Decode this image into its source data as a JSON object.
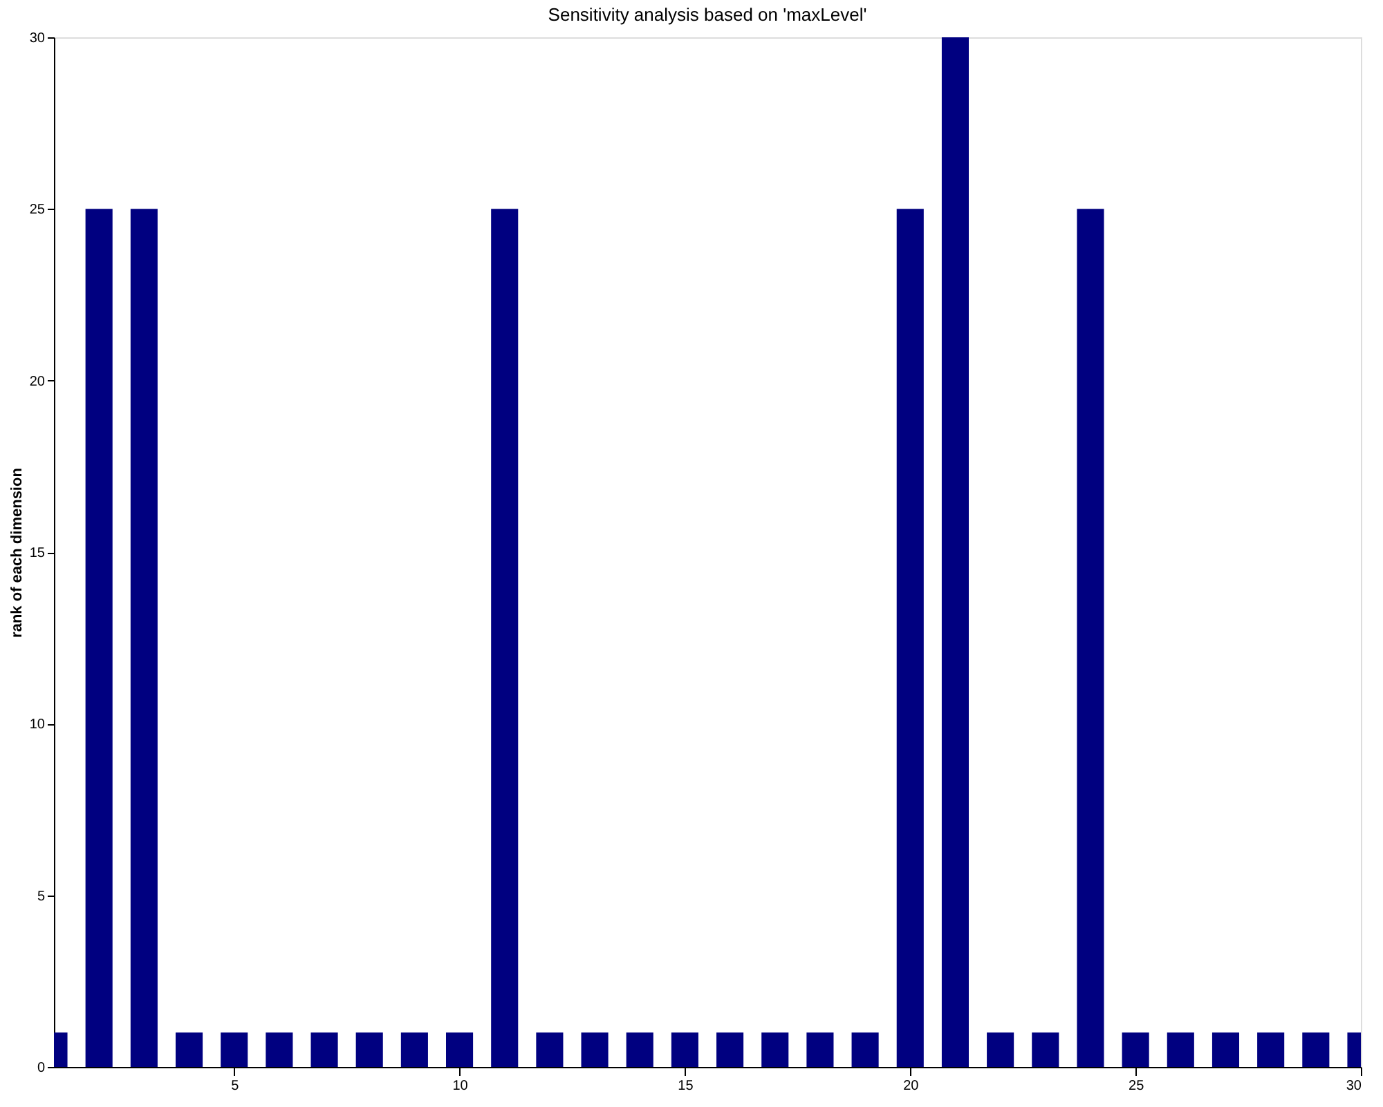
{
  "chart_data": {
    "type": "bar",
    "title": "Sensitivity analysis based on 'maxLevel'",
    "ylabel": "rank of each dimension",
    "x": [
      1,
      2,
      3,
      4,
      5,
      6,
      7,
      8,
      9,
      10,
      11,
      12,
      13,
      14,
      15,
      16,
      17,
      18,
      19,
      20,
      21,
      22,
      23,
      24,
      25,
      26,
      27,
      28,
      29,
      30
    ],
    "values": [
      1,
      25,
      25,
      1,
      1,
      1,
      1,
      1,
      1,
      1,
      25,
      1,
      1,
      1,
      1,
      1,
      1,
      1,
      1,
      25,
      30,
      1,
      1,
      25,
      1,
      1,
      1,
      1,
      1,
      1
    ],
    "color": "#000080",
    "xlim": [
      1,
      30
    ],
    "xticks": [
      5,
      10,
      15,
      20,
      25,
      30
    ],
    "ylim": [
      0,
      30
    ],
    "yticks": [
      0,
      5,
      10,
      15,
      20,
      25,
      30
    ],
    "grid": false
  }
}
